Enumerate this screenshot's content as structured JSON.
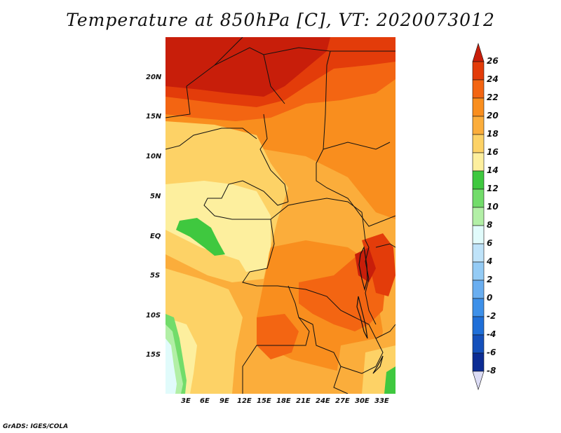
{
  "title": "Temperature at 850hPa [C], VT: 2020073012",
  "credit": "GrADS: IGES/COLA",
  "lat_labels": [
    "20N",
    "15N",
    "10N",
    "5N",
    "EQ",
    "5S",
    "10S",
    "15S"
  ],
  "lon_labels": [
    "3E",
    "6E",
    "9E",
    "12E",
    "15E",
    "18E",
    "21E",
    "24E",
    "27E",
    "30E",
    "33E"
  ],
  "colorbar": {
    "labels": [
      "26",
      "24",
      "22",
      "20",
      "18",
      "16",
      "14",
      "12",
      "10",
      "8",
      "6",
      "4",
      "2",
      "0",
      "-2",
      "-4",
      "-6",
      "-8"
    ],
    "colors": [
      "#c81e0a",
      "#e33c0a",
      "#f36512",
      "#f98e1e",
      "#fbad3b",
      "#fdd266",
      "#fdef9e",
      "#3fc83f",
      "#72dc6a",
      "#b2efa6",
      "#e1fbfb",
      "#bfe3f9",
      "#94cbf5",
      "#6aaef0",
      "#3d90e9",
      "#1f6fd8",
      "#1450bb",
      "#0c2c94",
      "#061165"
    ]
  }
}
